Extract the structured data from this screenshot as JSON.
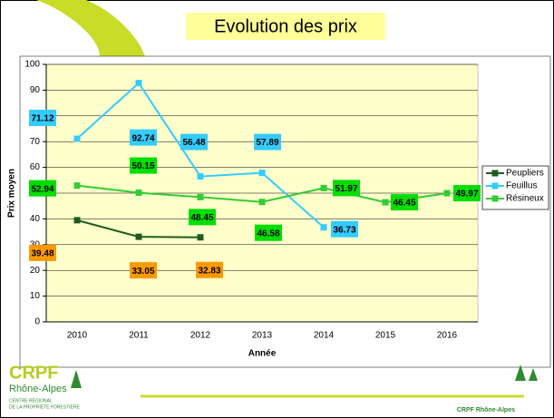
{
  "chart_data": {
    "type": "line",
    "title": "Evolution des prix",
    "x_label": "Année",
    "y_label": "Prix moyen",
    "categories": [
      "2010",
      "2011",
      "2012",
      "2013",
      "2014",
      "2015",
      "2016"
    ],
    "series": [
      {
        "name": "Peupliers",
        "color": "#1e5c1e",
        "label_color": "#ff9900",
        "values": [
          39.48,
          33.05,
          32.83,
          null,
          null,
          null,
          null
        ]
      },
      {
        "name": "Feuillus",
        "color": "#33ccff",
        "label_color": "#33ccff",
        "values": [
          71.12,
          92.74,
          56.48,
          57.89,
          36.73,
          null,
          null
        ]
      },
      {
        "name": "Résineux",
        "color": "#33cc33",
        "label_color": "#00dd00",
        "values": [
          52.94,
          50.15,
          48.45,
          46.58,
          51.97,
          46.45,
          49.97
        ]
      }
    ],
    "ylim": [
      0,
      100
    ],
    "yticks": [
      0,
      10,
      20,
      30,
      40,
      50,
      60,
      70,
      80,
      90,
      100
    ],
    "grid": true,
    "legend": "right"
  },
  "logo": {
    "name": "CRPF",
    "region": "Rhône-Alpes",
    "line1": "CENTRE RÉGIONAL",
    "line2": "DE LA PROPRIÉTÉ FORESTIÈRE"
  },
  "footer": "CRPF Rhône-Alpes"
}
